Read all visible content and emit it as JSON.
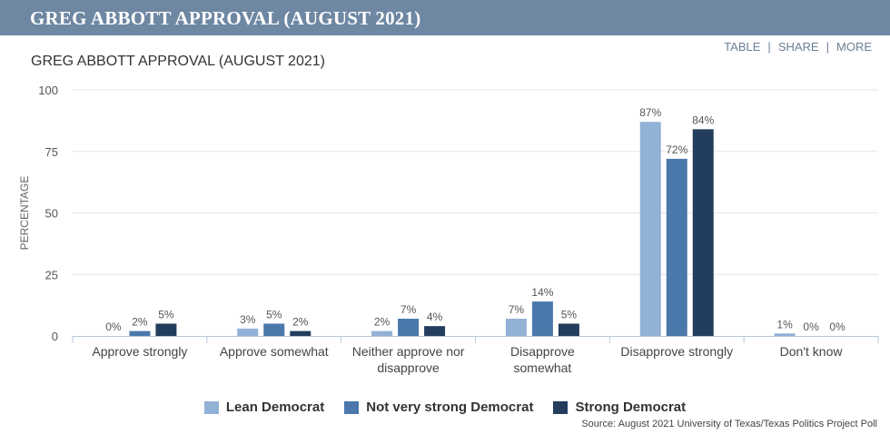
{
  "banner": {
    "title": "GREG ABBOTT APPROVAL (AUGUST 2021)"
  },
  "toolbar": {
    "table": "TABLE",
    "share": "SHARE",
    "more": "MORE"
  },
  "chart_data": {
    "type": "bar",
    "title": "GREG ABBOTT APPROVAL (AUGUST 2021)",
    "xlabel": "",
    "ylabel": "PERCENTAGE",
    "ylim": [
      0,
      100
    ],
    "yticks": [
      0,
      25,
      50,
      75,
      100
    ],
    "grid": true,
    "categories": [
      [
        "Approve strongly"
      ],
      [
        "Approve somewhat"
      ],
      [
        "Neither approve nor",
        "disapprove"
      ],
      [
        "Disapprove",
        "somewhat"
      ],
      [
        "Disapprove strongly"
      ],
      [
        "Don't know"
      ]
    ],
    "series": [
      {
        "name": "Lean Democrat",
        "color": "#92b1d6",
        "values": [
          0,
          3,
          2,
          7,
          87,
          1
        ]
      },
      {
        "name": "Not very strong Democrat",
        "color": "#4b78ab",
        "values": [
          2,
          5,
          7,
          14,
          72,
          0
        ]
      },
      {
        "name": "Strong Democrat",
        "color": "#233d5e",
        "values": [
          5,
          2,
          4,
          5,
          84,
          0
        ]
      }
    ],
    "value_suffix": "%",
    "legend_position": "bottom"
  },
  "source": "Source: August 2021 University of Texas/Texas Politics Project Poll"
}
